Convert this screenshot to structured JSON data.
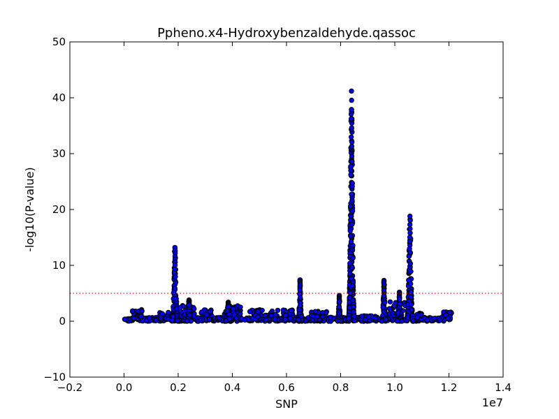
{
  "chart_data": {
    "type": "scatter",
    "title": "Ppheno.x4-Hydroxybenzaldehyde.qassoc",
    "xlabel": "SNP",
    "ylabel": "-log10(P-value)",
    "xlim": [
      -2000000,
      14000000
    ],
    "ylim": [
      -10,
      50
    ],
    "x_ticks": [
      -2000000,
      0,
      2000000,
      4000000,
      6000000,
      8000000,
      10000000,
      12000000,
      14000000
    ],
    "x_tick_labels": [
      "−0.2",
      "0.0",
      "0.2",
      "0.4",
      "0.6",
      "0.8",
      "1.0",
      "1.2",
      "1.4"
    ],
    "x_offset_label": "1e7",
    "y_ticks": [
      -10,
      0,
      10,
      20,
      30,
      40,
      50
    ],
    "y_tick_labels": [
      "−10",
      "0",
      "10",
      "20",
      "30",
      "40",
      "50"
    ],
    "threshold": {
      "y": 5,
      "color": "#ff0000",
      "style": "dotted"
    },
    "grid": false,
    "marker": {
      "face_color": "#0000ff",
      "edge_color": "#000000"
    },
    "x_range": [
      0,
      12100000
    ],
    "baseline_segments": [
      {
        "x0": 0,
        "x1": 12100000,
        "ymin": 0.0,
        "ymax": 0.7
      },
      {
        "x0": 300000,
        "x1": 700000,
        "ymin": 0.5,
        "ymax": 2.2
      },
      {
        "x0": 1300000,
        "x1": 1700000,
        "ymin": 0.3,
        "ymax": 1.6
      },
      {
        "x0": 2000000,
        "x1": 2600000,
        "ymin": 0.5,
        "ymax": 2.8
      },
      {
        "x0": 2800000,
        "x1": 3300000,
        "ymin": 0.3,
        "ymax": 2.2
      },
      {
        "x0": 3700000,
        "x1": 4300000,
        "ymin": 0.5,
        "ymax": 3.0
      },
      {
        "x0": 4600000,
        "x1": 5700000,
        "ymin": 0.3,
        "ymax": 2.2
      },
      {
        "x0": 5800000,
        "x1": 6300000,
        "ymin": 0.3,
        "ymax": 2.0
      },
      {
        "x0": 6900000,
        "x1": 7500000,
        "ymin": 0.3,
        "ymax": 1.8
      },
      {
        "x0": 8700000,
        "x1": 9300000,
        "ymin": 0.2,
        "ymax": 1.0
      },
      {
        "x0": 9800000,
        "x1": 10400000,
        "ymin": 0.5,
        "ymax": 3.5
      },
      {
        "x0": 10800000,
        "x1": 11000000,
        "ymin": 0.3,
        "ymax": 1.5
      },
      {
        "x0": 11800000,
        "x1": 12100000,
        "ymin": 0.5,
        "ymax": 1.8
      }
    ],
    "peaks": [
      {
        "center": 1880000,
        "height": 13.2,
        "width": 110000
      },
      {
        "center": 2400000,
        "height": 3.8,
        "width": 80000
      },
      {
        "center": 3850000,
        "height": 3.4,
        "width": 90000
      },
      {
        "center": 6500000,
        "height": 7.4,
        "width": 70000
      },
      {
        "center": 7950000,
        "height": 4.6,
        "width": 60000
      },
      {
        "center": 8400000,
        "height": 41.2,
        "width": 110000
      },
      {
        "center": 9600000,
        "height": 7.3,
        "width": 70000
      },
      {
        "center": 10170000,
        "height": 5.2,
        "width": 90000
      },
      {
        "center": 10560000,
        "height": 18.8,
        "width": 120000
      }
    ]
  }
}
